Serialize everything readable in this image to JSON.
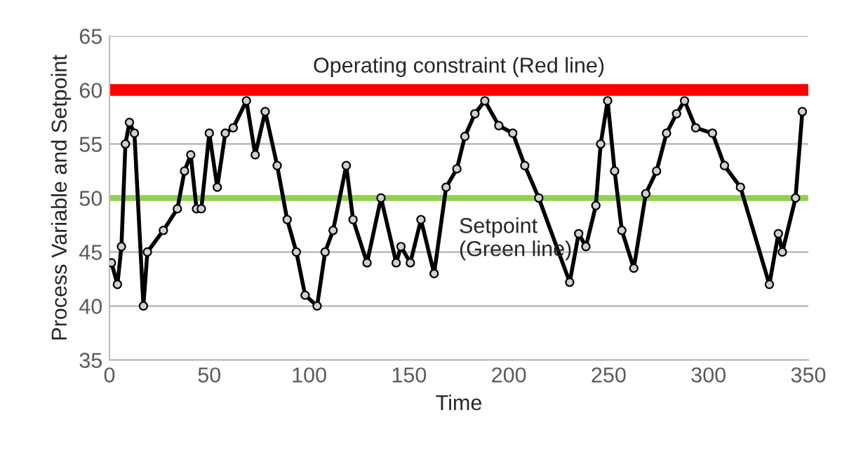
{
  "chart_data": {
    "type": "line",
    "xlabel": "Time",
    "ylabel": "Process Variable and Setpoint",
    "xlim": [
      0,
      350
    ],
    "xticks": [
      0,
      50,
      100,
      150,
      200,
      250,
      300,
      350
    ],
    "ylim": [
      35,
      65
    ],
    "yticks": [
      35,
      40,
      45,
      50,
      55,
      60,
      65
    ],
    "grid": "y",
    "marker": "circle",
    "line_style": "solid",
    "series": [
      {
        "color": "#000000",
        "x": [
          1,
          4,
          6,
          8,
          10,
          12.5,
          17,
          19,
          27,
          34,
          37.6,
          40.7,
          43.6,
          46,
          50,
          54,
          58,
          62,
          68.6,
          73,
          78,
          84,
          89,
          93.6,
          98,
          104,
          108,
          112,
          118.6,
          122,
          129,
          136,
          143.6,
          146,
          150.7,
          156,
          162.6,
          168.6,
          174,
          178,
          183,
          188,
          195,
          202,
          208,
          215,
          230.5,
          235,
          238.6,
          243.6,
          246,
          249.5,
          253,
          256.6,
          262.6,
          268.6,
          274,
          279,
          284,
          288,
          293.6,
          302,
          308,
          316,
          330.5,
          335,
          337,
          343.6,
          347
        ],
        "values": [
          44,
          42,
          45.5,
          55,
          57,
          56,
          40,
          45,
          47,
          49,
          52.5,
          54,
          49,
          49,
          56,
          51,
          56,
          56.5,
          59,
          54,
          58,
          53,
          48,
          45,
          41,
          40,
          45,
          47,
          53,
          48,
          44,
          50,
          44,
          45.5,
          44,
          48,
          43,
          51,
          52.7,
          55.7,
          57.8,
          59,
          56.7,
          56,
          53,
          50,
          42.2,
          46.7,
          45.5,
          49.3,
          55,
          59,
          52.5,
          47,
          43.5,
          50.4,
          52.5,
          56,
          57.8,
          59,
          56.5,
          56,
          53,
          51,
          42,
          46.7,
          45,
          50,
          58
        ]
      }
    ],
    "ref_lines": [
      {
        "axis": "y",
        "value": 60,
        "label": "Operating constraint (Red line)",
        "color": "#ff0000"
      },
      {
        "axis": "y",
        "value": 50,
        "label": "Setpoint\n(Green line)",
        "color": "#92d050"
      }
    ]
  }
}
